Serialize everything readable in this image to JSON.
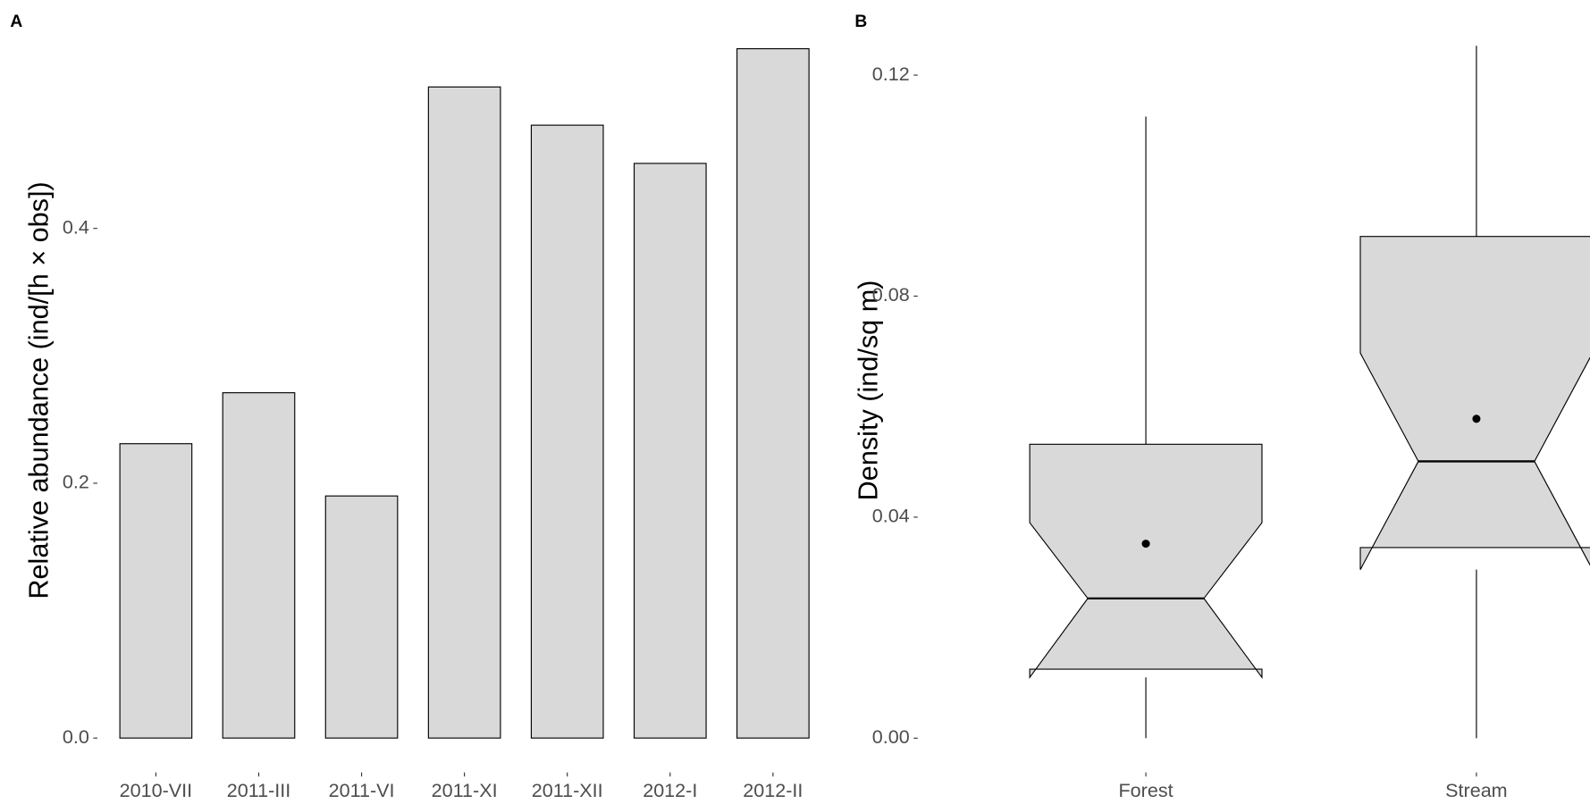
{
  "chart_data": [
    {
      "type": "bar",
      "panel_label": "A",
      "y_label": "Relative abundance (ind/[h × obs])",
      "categories": [
        "2010-VII",
        "2011-III",
        "2011-VI",
        "2011-XI",
        "2011-XII",
        "2012-I",
        "2012-II"
      ],
      "values": [
        0.231,
        0.271,
        0.19,
        0.511,
        0.481,
        0.451,
        0.541
      ],
      "color": "#d9d9d9",
      "ylim": [
        -0.027,
        0.568
      ],
      "yticks": [
        {
          "value": 0,
          "label": "0.0"
        },
        0.2,
        0.4
      ]
    },
    {
      "type": "boxplot",
      "panel_label": "B",
      "y_label": "Density (ind/sq m)",
      "categories": [
        "Forest",
        "Stream"
      ],
      "whisker_low": [
        0,
        0
      ],
      "q1": [
        0.0125,
        0.0345
      ],
      "median": [
        0.0253,
        0.0501
      ],
      "q3": [
        0.0532,
        0.0908
      ],
      "whisker_high": [
        0.1125,
        0.1253
      ],
      "notch_low": [
        0.011,
        0.0305
      ],
      "notch_high": [
        0.039,
        0.0697
      ],
      "mean": [
        0.0352,
        0.0578
      ],
      "color": "#d9d9d9",
      "ylim": [
        -0.0062,
        0.131
      ],
      "yticks": [
        {
          "value": 0,
          "label": "0.00"
        },
        0.04,
        0.08,
        0.12
      ]
    }
  ]
}
